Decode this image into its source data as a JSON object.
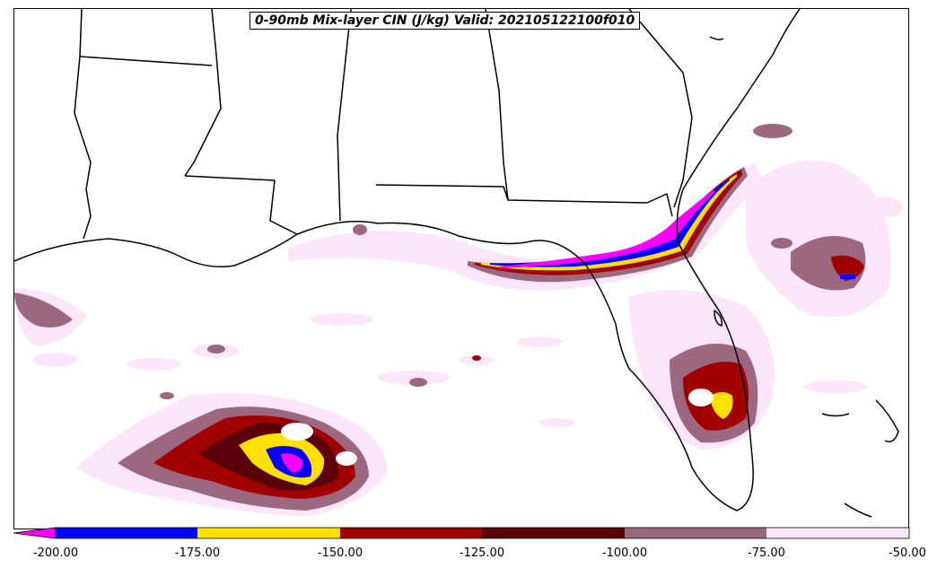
{
  "title": "0-90mb Mix-layer CIN (J/kg) Valid: 202105122100f010",
  "colorbar": {
    "levels": [
      "-200.00",
      "-175.00",
      "-150.00",
      "-125.00",
      "-100.00",
      "-75.00",
      "-50.00"
    ],
    "colors": [
      "#ff00ff",
      "#0000ff",
      "#ffe000",
      "#a00000",
      "#5a0008",
      "#9c6880",
      "#fde6fa"
    ]
  },
  "palette": {
    "magenta": "#ff00ff",
    "blue": "#0000ff",
    "yellow": "#ffe000",
    "red": "#a00000",
    "darkred": "#5a0008",
    "mauve": "#9c6880",
    "pink": "#fde6fa"
  }
}
